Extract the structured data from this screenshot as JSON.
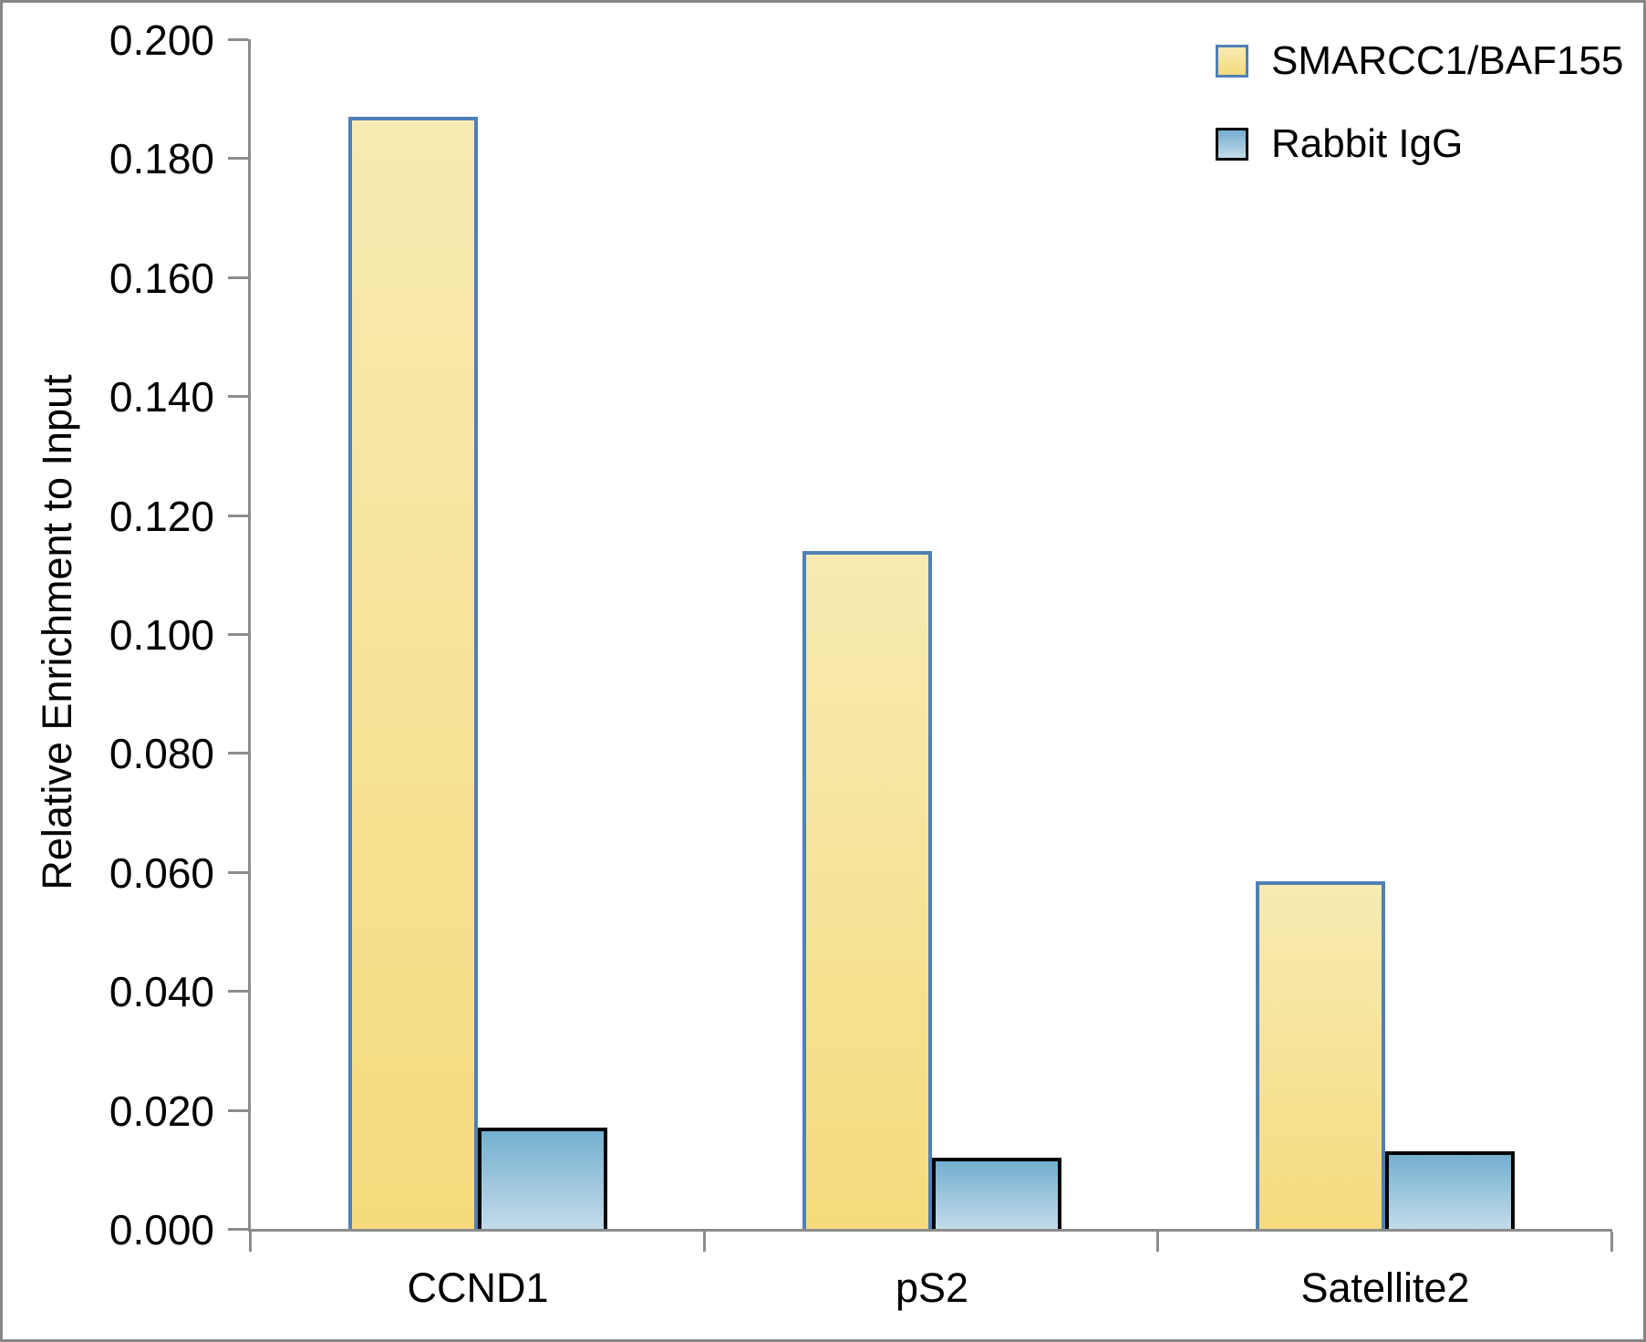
{
  "chart_data": {
    "type": "bar",
    "categories": [
      "CCND1",
      "pS2",
      "Satellite2"
    ],
    "series": [
      {
        "name": "SMARCC1/BAF155",
        "values": [
          0.187,
          0.114,
          0.0585
        ],
        "fill_top": "#F7EBB3",
        "fill_bottom": "#F6DB7D",
        "border_color": "#4E80B6"
      },
      {
        "name": "Rabbit IgG",
        "values": [
          0.017,
          0.012,
          0.013
        ],
        "fill_top": "#74AFCF",
        "fill_bottom": "#C2DBEA",
        "border_color": "#000000"
      }
    ],
    "title": "",
    "xlabel": "",
    "ylabel": "Relative Enrichment to Input",
    "ylim": [
      0,
      0.2
    ],
    "ytick_step": 0.02,
    "ytick_labels": [
      "0.000",
      "0.020",
      "0.040",
      "0.060",
      "0.080",
      "0.100",
      "0.120",
      "0.140",
      "0.160",
      "0.180",
      "0.200"
    ],
    "grid": false,
    "legend_position": "top-right",
    "axis_color": "#8C8C8C",
    "text_color": "#000000"
  }
}
